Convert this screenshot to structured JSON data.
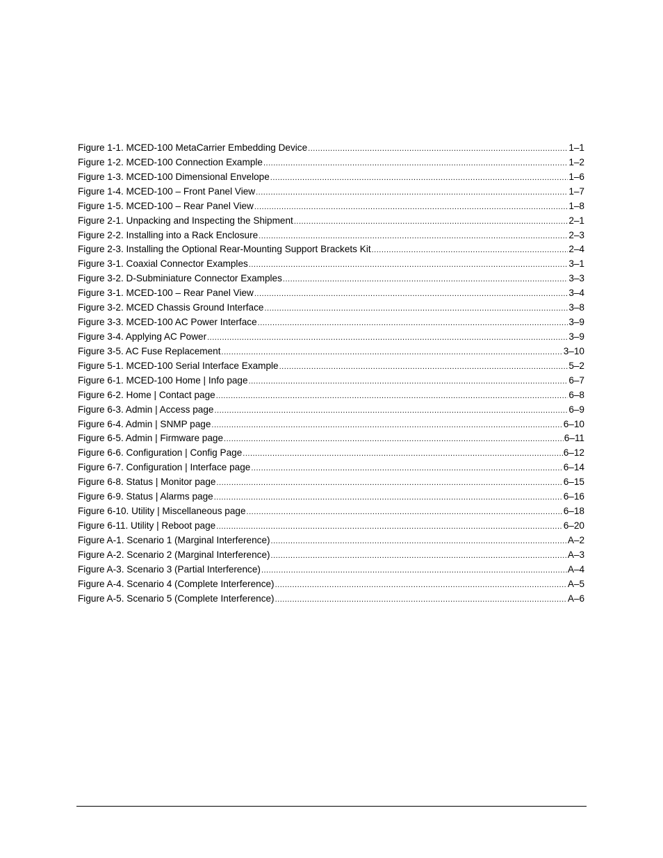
{
  "list_of_figures": [
    {
      "title": "Figure 1-1. MCED-100 MetaCarrier Embedding Device",
      "page": "1–1"
    },
    {
      "title": "Figure 1-2. MCED-100 Connection Example",
      "page": "1–2"
    },
    {
      "title": "Figure 1-3. MCED-100 Dimensional Envelope",
      "page": "1–6"
    },
    {
      "title": "Figure 1-4. MCED-100 – Front Panel View",
      "page": "1–7"
    },
    {
      "title": "Figure 1-5. MCED-100 – Rear Panel View",
      "page": "1–8"
    },
    {
      "title": "Figure 2-1. Unpacking and Inspecting the Shipment",
      "page": "2–1"
    },
    {
      "title": "Figure 2-2. Installing into a Rack Enclosure",
      "page": "2–3"
    },
    {
      "title": "Figure 2-3.  Installing the Optional Rear-Mounting Support Brackets Kit",
      "page": "2–4"
    },
    {
      "title": "Figure 3-1. Coaxial Connector Examples",
      "page": "3–1"
    },
    {
      "title": "Figure 3-2. D-Subminiature Connector Examples",
      "page": "3–3"
    },
    {
      "title": "Figure 3-1. MCED-100 – Rear Panel View",
      "page": "3–4"
    },
    {
      "title": "Figure 3-2. MCED Chassis Ground Interface",
      "page": "3–8"
    },
    {
      "title": "Figure 3-3. MCED-100 AC Power Interface",
      "page": "3–9"
    },
    {
      "title": "Figure 3-4. Applying AC Power",
      "page": "3–9"
    },
    {
      "title": "Figure 3-5. AC Fuse Replacement",
      "page": "3–10"
    },
    {
      "title": "Figure 5-1. MCED-100 Serial Interface Example",
      "page": "5–2"
    },
    {
      "title": "Figure 6-1. MCED-100 Home | Info page",
      "page": "6–7"
    },
    {
      "title": "Figure 6-2. Home | Contact page",
      "page": "6–8"
    },
    {
      "title": "Figure 6-3. Admin | Access page",
      "page": "6–9"
    },
    {
      "title": "Figure 6-4. Admin | SNMP page",
      "page": "6–10"
    },
    {
      "title": "Figure 6-5. Admin | Firmware page",
      "page": "6–11"
    },
    {
      "title": "Figure 6-6. Configuration | Config Page",
      "page": "6–12"
    },
    {
      "title": "Figure 6-7. Configuration | Interface page",
      "page": "6–14"
    },
    {
      "title": "Figure 6-8. Status | Monitor page",
      "page": "6–15"
    },
    {
      "title": "Figure 6-9. Status | Alarms page",
      "page": "6–16"
    },
    {
      "title": "Figure 6-10. Utility | Miscellaneous page",
      "page": "6–18"
    },
    {
      "title": "Figure 6-11. Utility | Reboot page",
      "page": "6–20"
    },
    {
      "title": "Figure A-1. Scenario 1 (Marginal Interference)",
      "page": "A–2"
    },
    {
      "title": "Figure A-2. Scenario 2 (Marginal Interference)",
      "page": "A–3"
    },
    {
      "title": "Figure A-3. Scenario 3 (Partial Interference)",
      "page": "A–4"
    },
    {
      "title": "Figure A-4. Scenario 4 (Complete Interference)",
      "page": "A–5"
    },
    {
      "title": "Figure A-5. Scenario 5 (Complete Interference)",
      "page": "A–6"
    }
  ]
}
